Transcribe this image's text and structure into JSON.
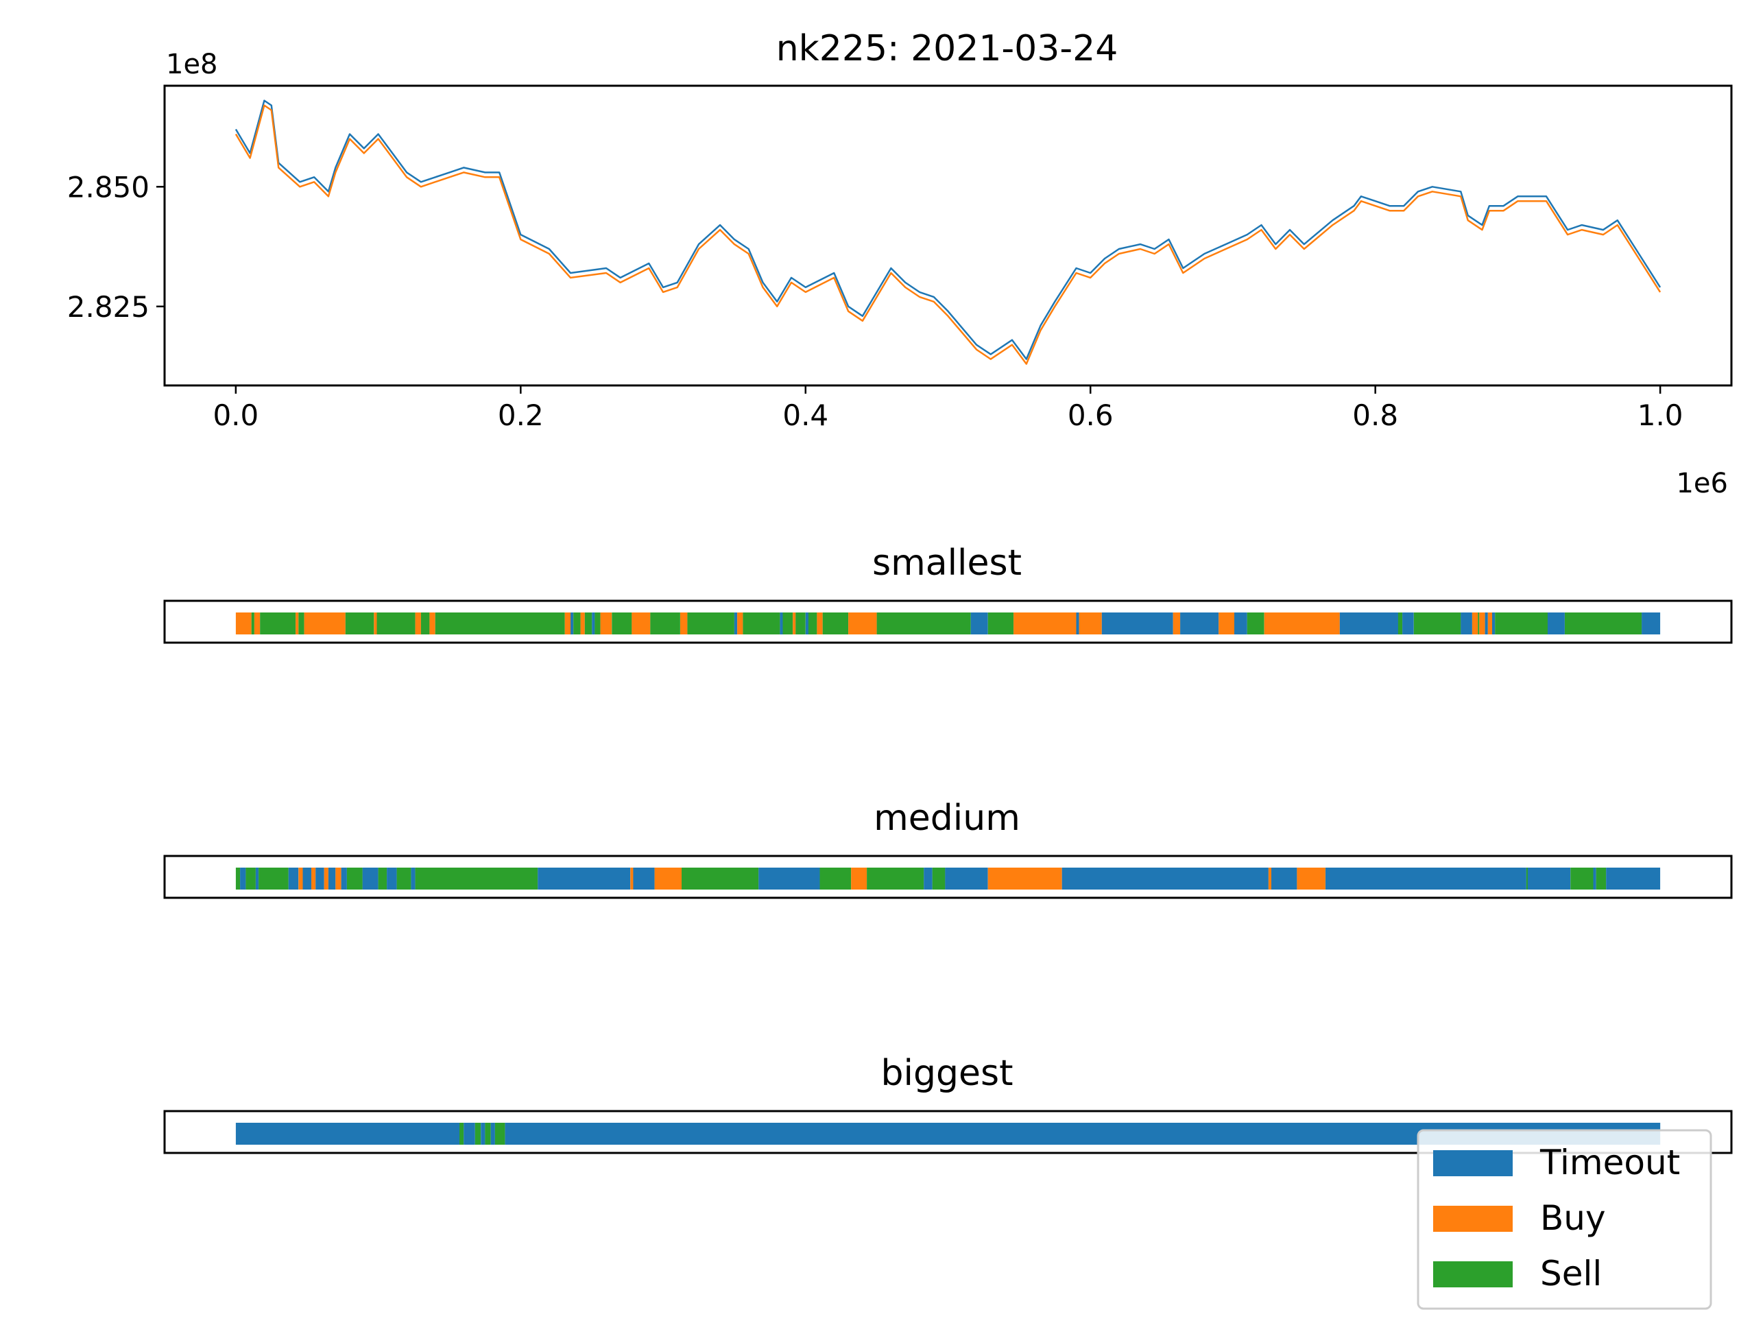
{
  "colors": {
    "timeout": "#1f77b4",
    "buy": "#ff7f0e",
    "sell": "#2ca02c",
    "axis": "#000000",
    "legend_frame": "#cccccc"
  },
  "chart_data": [
    {
      "type": "line",
      "title": "nk225: 2021-03-24",
      "xlabel": "",
      "ylabel": "",
      "x_offset_label": "1e6",
      "y_offset_label": "1e8",
      "xlim": [
        -0.05,
        1.05
      ],
      "ylim": [
        2.8085,
        2.8711
      ],
      "grid": false,
      "x_ticks": [
        0.0,
        0.2,
        0.4,
        0.6,
        0.8,
        1.0
      ],
      "x_tick_labels": [
        "0.0",
        "0.2",
        "0.4",
        "0.6",
        "0.8",
        "1.0"
      ],
      "y_ticks": [
        2.825,
        2.85
      ],
      "y_tick_labels": [
        "2.825",
        "2.850"
      ],
      "series": [
        {
          "color": "#1f77b4",
          "x": [
            0.0,
            0.01,
            0.02,
            0.025,
            0.03,
            0.045,
            0.055,
            0.065,
            0.07,
            0.08,
            0.09,
            0.1,
            0.105,
            0.12,
            0.13,
            0.15,
            0.16,
            0.175,
            0.185,
            0.2,
            0.22,
            0.235,
            0.26,
            0.27,
            0.29,
            0.3,
            0.31,
            0.325,
            0.34,
            0.35,
            0.36,
            0.37,
            0.38,
            0.39,
            0.4,
            0.42,
            0.43,
            0.44,
            0.46,
            0.47,
            0.48,
            0.49,
            0.5,
            0.52,
            0.53,
            0.545,
            0.555,
            0.565,
            0.575,
            0.59,
            0.6,
            0.61,
            0.62,
            0.635,
            0.645,
            0.655,
            0.665,
            0.68,
            0.695,
            0.71,
            0.72,
            0.73,
            0.74,
            0.75,
            0.77,
            0.785,
            0.79,
            0.8,
            0.81,
            0.82,
            0.83,
            0.84,
            0.86,
            0.865,
            0.875,
            0.88,
            0.89,
            0.9,
            0.92,
            0.935,
            0.945,
            0.96,
            0.97,
            0.985,
            1.0
          ],
          "y": [
            2.862,
            2.857,
            2.868,
            2.867,
            2.855,
            2.851,
            2.852,
            2.849,
            2.854,
            2.861,
            2.858,
            2.861,
            2.859,
            2.853,
            2.851,
            2.853,
            2.854,
            2.853,
            2.853,
            2.84,
            2.837,
            2.832,
            2.833,
            2.831,
            2.834,
            2.829,
            2.83,
            2.838,
            2.842,
            2.839,
            2.837,
            2.83,
            2.826,
            2.831,
            2.829,
            2.832,
            2.825,
            2.823,
            2.833,
            2.83,
            2.828,
            2.827,
            2.824,
            2.817,
            2.815,
            2.818,
            2.814,
            2.821,
            2.826,
            2.833,
            2.832,
            2.835,
            2.837,
            2.838,
            2.837,
            2.839,
            2.833,
            2.836,
            2.838,
            2.84,
            2.842,
            2.838,
            2.841,
            2.838,
            2.843,
            2.846,
            2.848,
            2.847,
            2.846,
            2.846,
            2.849,
            2.85,
            2.849,
            2.844,
            2.842,
            2.846,
            2.846,
            2.848,
            2.848,
            2.841,
            2.842,
            2.841,
            2.843,
            2.836,
            2.829
          ]
        },
        {
          "color": "#ff7f0e",
          "x": [
            0.0,
            0.01,
            0.02,
            0.025,
            0.03,
            0.045,
            0.055,
            0.065,
            0.07,
            0.08,
            0.09,
            0.1,
            0.105,
            0.12,
            0.13,
            0.15,
            0.16,
            0.175,
            0.185,
            0.2,
            0.22,
            0.235,
            0.26,
            0.27,
            0.29,
            0.3,
            0.31,
            0.325,
            0.34,
            0.35,
            0.36,
            0.37,
            0.38,
            0.39,
            0.4,
            0.42,
            0.43,
            0.44,
            0.46,
            0.47,
            0.48,
            0.49,
            0.5,
            0.52,
            0.53,
            0.545,
            0.555,
            0.565,
            0.575,
            0.59,
            0.6,
            0.61,
            0.62,
            0.635,
            0.645,
            0.655,
            0.665,
            0.68,
            0.695,
            0.71,
            0.72,
            0.73,
            0.74,
            0.75,
            0.77,
            0.785,
            0.79,
            0.8,
            0.81,
            0.82,
            0.83,
            0.84,
            0.86,
            0.865,
            0.875,
            0.88,
            0.89,
            0.9,
            0.92,
            0.935,
            0.945,
            0.96,
            0.97,
            0.985,
            1.0
          ],
          "y": [
            2.861,
            2.856,
            2.867,
            2.866,
            2.854,
            2.85,
            2.851,
            2.848,
            2.853,
            2.86,
            2.857,
            2.86,
            2.858,
            2.852,
            2.85,
            2.852,
            2.853,
            2.852,
            2.852,
            2.839,
            2.836,
            2.831,
            2.832,
            2.83,
            2.833,
            2.828,
            2.829,
            2.837,
            2.841,
            2.838,
            2.836,
            2.829,
            2.825,
            2.83,
            2.828,
            2.831,
            2.824,
            2.822,
            2.832,
            2.829,
            2.827,
            2.826,
            2.823,
            2.816,
            2.814,
            2.817,
            2.813,
            2.82,
            2.825,
            2.832,
            2.831,
            2.834,
            2.836,
            2.837,
            2.836,
            2.838,
            2.832,
            2.835,
            2.837,
            2.839,
            2.841,
            2.837,
            2.84,
            2.837,
            2.842,
            2.845,
            2.847,
            2.846,
            2.845,
            2.845,
            2.848,
            2.849,
            2.848,
            2.843,
            2.841,
            2.845,
            2.845,
            2.847,
            2.847,
            2.84,
            2.841,
            2.84,
            2.842,
            2.835,
            2.828
          ]
        }
      ]
    },
    {
      "type": "heatmap",
      "title": "smallest",
      "segments": [
        [
          "buy",
          0.0,
          0.011
        ],
        [
          "sell",
          0.011,
          0.013
        ],
        [
          "buy",
          0.013,
          0.017
        ],
        [
          "sell",
          0.017,
          0.042
        ],
        [
          "buy",
          0.042,
          0.044
        ],
        [
          "sell",
          0.044,
          0.048
        ],
        [
          "buy",
          0.048,
          0.077
        ],
        [
          "sell",
          0.077,
          0.097
        ],
        [
          "buy",
          0.097,
          0.099
        ],
        [
          "sell",
          0.099,
          0.126
        ],
        [
          "buy",
          0.126,
          0.13
        ],
        [
          "sell",
          0.13,
          0.136
        ],
        [
          "buy",
          0.136,
          0.14
        ],
        [
          "sell",
          0.14,
          0.231
        ],
        [
          "buy",
          0.231,
          0.235
        ],
        [
          "timeout",
          0.235,
          0.237
        ],
        [
          "sell",
          0.237,
          0.242
        ],
        [
          "buy",
          0.242,
          0.245
        ],
        [
          "sell",
          0.245,
          0.25
        ],
        [
          "timeout",
          0.25,
          0.252
        ],
        [
          "sell",
          0.252,
          0.256
        ],
        [
          "buy",
          0.256,
          0.264
        ],
        [
          "sell",
          0.264,
          0.278
        ],
        [
          "buy",
          0.278,
          0.291
        ],
        [
          "sell",
          0.291,
          0.312
        ],
        [
          "buy",
          0.312,
          0.317
        ],
        [
          "sell",
          0.317,
          0.35
        ],
        [
          "timeout",
          0.35,
          0.352
        ],
        [
          "buy",
          0.352,
          0.356
        ],
        [
          "sell",
          0.356,
          0.382
        ],
        [
          "timeout",
          0.382,
          0.384
        ],
        [
          "sell",
          0.384,
          0.391
        ],
        [
          "buy",
          0.391,
          0.393
        ],
        [
          "sell",
          0.393,
          0.4
        ],
        [
          "timeout",
          0.4,
          0.402
        ],
        [
          "sell",
          0.402,
          0.408
        ],
        [
          "buy",
          0.408,
          0.412
        ],
        [
          "sell",
          0.412,
          0.43
        ],
        [
          "buy",
          0.43,
          0.45
        ],
        [
          "sell",
          0.45,
          0.516
        ],
        [
          "timeout",
          0.516,
          0.528
        ],
        [
          "sell",
          0.528,
          0.546
        ],
        [
          "buy",
          0.546,
          0.59
        ],
        [
          "timeout",
          0.59,
          0.592
        ],
        [
          "buy",
          0.592,
          0.608
        ],
        [
          "timeout",
          0.608,
          0.658
        ],
        [
          "buy",
          0.658,
          0.663
        ],
        [
          "timeout",
          0.663,
          0.69
        ],
        [
          "buy",
          0.69,
          0.701
        ],
        [
          "timeout",
          0.701,
          0.71
        ],
        [
          "sell",
          0.71,
          0.722
        ],
        [
          "buy",
          0.722,
          0.775
        ],
        [
          "timeout",
          0.775,
          0.816
        ],
        [
          "sell",
          0.816,
          0.819
        ],
        [
          "timeout",
          0.819,
          0.827
        ],
        [
          "sell",
          0.827,
          0.86
        ],
        [
          "timeout",
          0.86,
          0.868
        ],
        [
          "buy",
          0.868,
          0.872
        ],
        [
          "sell",
          0.872,
          0.873
        ],
        [
          "buy",
          0.873,
          0.877
        ],
        [
          "timeout",
          0.877,
          0.879
        ],
        [
          "buy",
          0.879,
          0.882
        ],
        [
          "timeout",
          0.882,
          0.884
        ],
        [
          "sell",
          0.884,
          0.921
        ],
        [
          "timeout",
          0.921,
          0.933
        ],
        [
          "sell",
          0.933,
          0.987
        ],
        [
          "timeout",
          0.987,
          1.0
        ]
      ]
    },
    {
      "type": "heatmap",
      "title": "medium",
      "segments": [
        [
          "sell",
          0.0,
          0.003
        ],
        [
          "timeout",
          0.003,
          0.007
        ],
        [
          "sell",
          0.007,
          0.014
        ],
        [
          "timeout",
          0.014,
          0.016
        ],
        [
          "sell",
          0.016,
          0.037
        ],
        [
          "timeout",
          0.037,
          0.044
        ],
        [
          "buy",
          0.044,
          0.047
        ],
        [
          "timeout",
          0.047,
          0.053
        ],
        [
          "buy",
          0.053,
          0.056
        ],
        [
          "timeout",
          0.056,
          0.062
        ],
        [
          "buy",
          0.062,
          0.065
        ],
        [
          "timeout",
          0.065,
          0.07
        ],
        [
          "buy",
          0.07,
          0.074
        ],
        [
          "timeout",
          0.074,
          0.078
        ],
        [
          "sell",
          0.078,
          0.089
        ],
        [
          "timeout",
          0.089,
          0.1
        ],
        [
          "sell",
          0.1,
          0.106
        ],
        [
          "timeout",
          0.106,
          0.113
        ],
        [
          "sell",
          0.113,
          0.123
        ],
        [
          "timeout",
          0.123,
          0.126
        ],
        [
          "sell",
          0.126,
          0.212
        ],
        [
          "timeout",
          0.212,
          0.277
        ],
        [
          "buy",
          0.277,
          0.279
        ],
        [
          "timeout",
          0.279,
          0.294
        ],
        [
          "buy",
          0.294,
          0.313
        ],
        [
          "sell",
          0.313,
          0.367
        ],
        [
          "timeout",
          0.367,
          0.41
        ],
        [
          "sell",
          0.41,
          0.432
        ],
        [
          "buy",
          0.432,
          0.443
        ],
        [
          "sell",
          0.443,
          0.483
        ],
        [
          "timeout",
          0.483,
          0.489
        ],
        [
          "sell",
          0.489,
          0.498
        ],
        [
          "timeout",
          0.498,
          0.528
        ],
        [
          "buy",
          0.528,
          0.58
        ],
        [
          "timeout",
          0.58,
          0.725
        ],
        [
          "buy",
          0.725,
          0.727
        ],
        [
          "timeout",
          0.727,
          0.745
        ],
        [
          "buy",
          0.745,
          0.765
        ],
        [
          "timeout",
          0.765,
          0.906
        ],
        [
          "sell",
          0.906,
          0.907
        ],
        [
          "timeout",
          0.907,
          0.937
        ],
        [
          "sell",
          0.937,
          0.953
        ],
        [
          "timeout",
          0.953,
          0.955
        ],
        [
          "sell",
          0.955,
          0.962
        ],
        [
          "timeout",
          0.962,
          1.0
        ]
      ]
    },
    {
      "type": "heatmap",
      "title": "biggest",
      "segments": [
        [
          "timeout",
          0.0,
          0.157
        ],
        [
          "sell",
          0.157,
          0.16
        ],
        [
          "timeout",
          0.16,
          0.168
        ],
        [
          "sell",
          0.168,
          0.172
        ],
        [
          "timeout",
          0.172,
          0.175
        ],
        [
          "sell",
          0.175,
          0.179
        ],
        [
          "timeout",
          0.179,
          0.182
        ],
        [
          "sell",
          0.182,
          0.189
        ],
        [
          "timeout",
          0.189,
          1.0
        ]
      ]
    }
  ],
  "legend": {
    "placement": "lower-right",
    "items": [
      {
        "key": "timeout",
        "label": "Timeout"
      },
      {
        "key": "buy",
        "label": "Buy"
      },
      {
        "key": "sell",
        "label": "Sell"
      }
    ]
  }
}
